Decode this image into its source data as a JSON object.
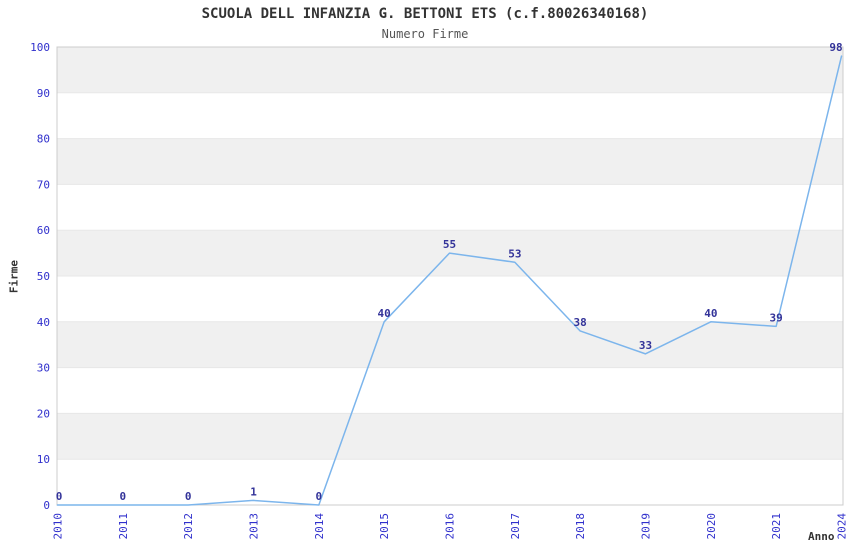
{
  "chart_data": {
    "type": "line",
    "title": "SCUOLA DELL INFANZIA G. BETTONI ETS (c.f.80026340168)",
    "subtitle": "Numero Firme",
    "xlabel": "Anno",
    "ylabel": "Firme",
    "categories": [
      "2010",
      "2011",
      "2012",
      "2013",
      "2014",
      "2015",
      "2016",
      "2017",
      "2018",
      "2019",
      "2020",
      "2021",
      "2024"
    ],
    "values": [
      0,
      0,
      0,
      1,
      0,
      40,
      55,
      53,
      38,
      33,
      40,
      39,
      98
    ],
    "ylim": [
      0,
      100
    ],
    "ytick_step": 10,
    "ytick_labels": [
      "0",
      "10",
      "20",
      "30",
      "40",
      "50",
      "60",
      "70",
      "80",
      "90",
      "100"
    ],
    "legend": "none",
    "grid": "alternating-horizontal-bands",
    "colors": {
      "line": "#7cb5ec",
      "data_label": "#333399",
      "tick_label": "#3030cc",
      "band": "#f0f0f0",
      "band_alt": "#ffffff",
      "grid_line": "#e7e7e7",
      "plot_border": "#cccccc",
      "title": "#333333",
      "subtitle": "#555555",
      "axis_title": "#333333"
    }
  }
}
